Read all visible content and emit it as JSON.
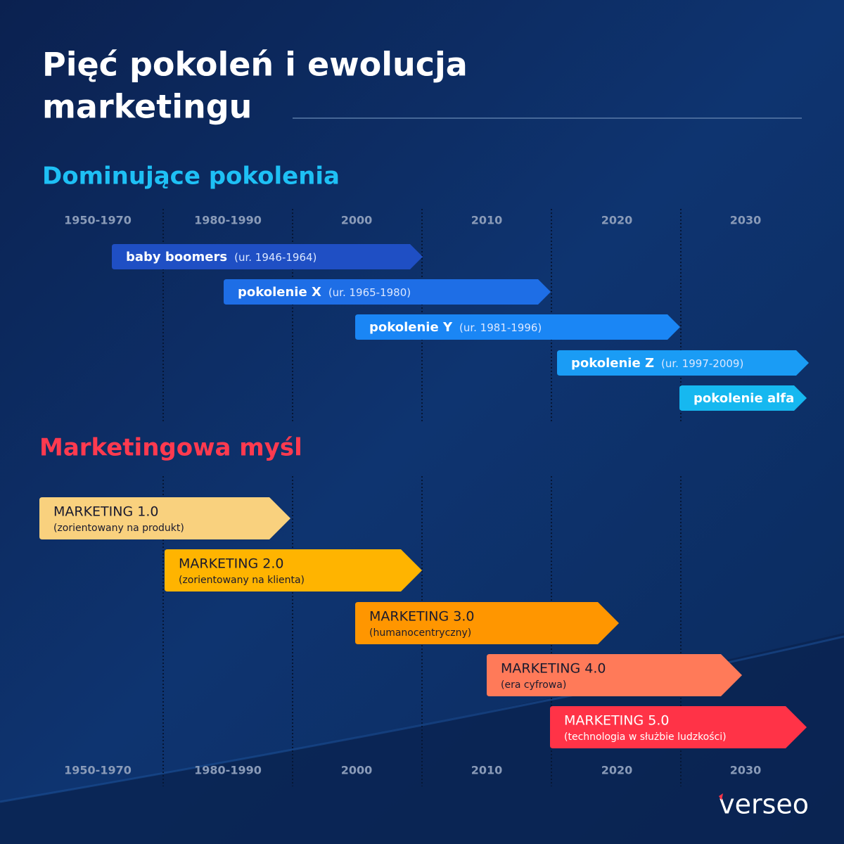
{
  "header": {
    "title": [
      "Pięć pokoleń i ewolucja",
      "marketingu"
    ]
  },
  "generations_section": {
    "title": "Dominujące pokolenia"
  },
  "marketing_section": {
    "title": "Marketingowa myśl"
  },
  "periods": [
    "1950-1970",
    "1980-1990",
    "2000",
    "2010",
    "2020",
    "2030"
  ],
  "generations": [
    {
      "name": "baby boomers",
      "years": "(ur. 1946-1964)"
    },
    {
      "name": "pokolenie X",
      "years": "(ur. 1965-1980)"
    },
    {
      "name": "pokolenie Y",
      "years": "(ur. 1981-1996)"
    },
    {
      "name": "pokolenie Z",
      "years": "(ur. 1997-2009)"
    },
    {
      "name": "pokolenie alfa"
    }
  ],
  "marketing": [
    {
      "name": "MARKETING 1.0",
      "description": "(zorientowany na produkt)"
    },
    {
      "name": "MARKETING 2.0",
      "description": "(zorientowany na klienta)"
    },
    {
      "name": "MARKETING 3.0",
      "description": "(humanocentryczny)"
    },
    {
      "name": "MARKETING 4.0",
      "description": "(era cyfrowa)"
    },
    {
      "name": "MARKETING 5.0",
      "description": "(technologia w służbie ludzkości)"
    }
  ],
  "logo": "verseo"
}
